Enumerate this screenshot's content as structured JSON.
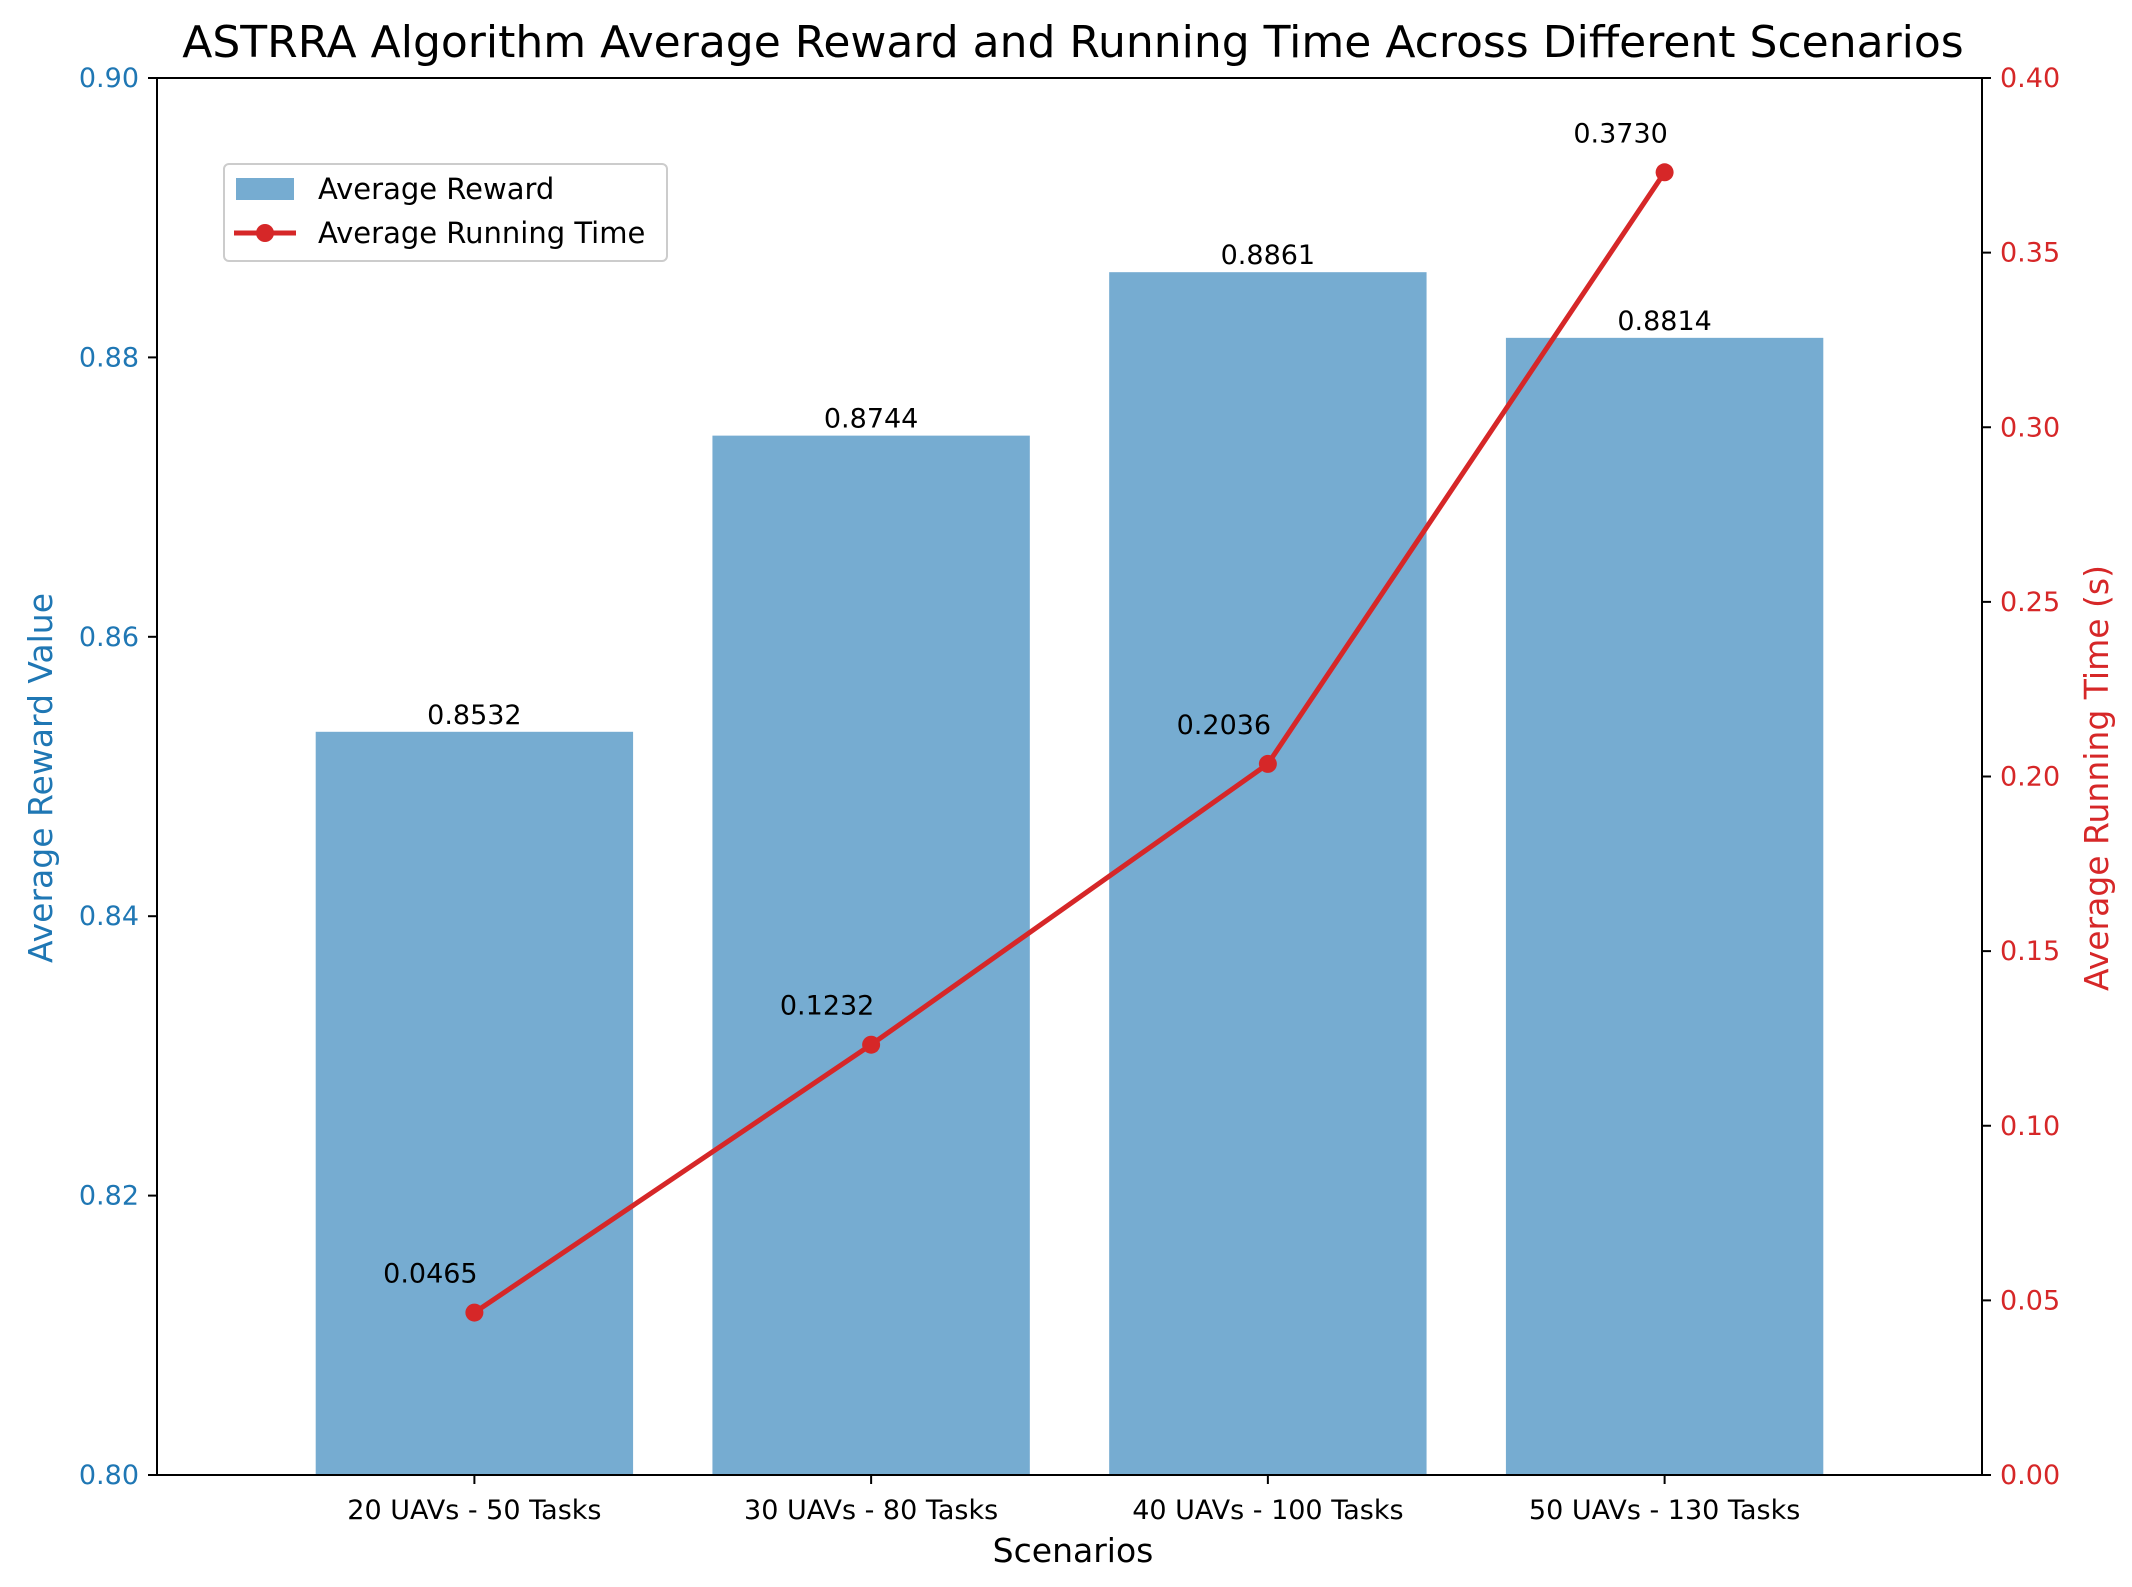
{
  "chart_data": {
    "type": "bar+line",
    "title": "ASTRRA Algorithm Average Reward and Running Time Across Different Scenarios",
    "xlabel": "Scenarios",
    "categories": [
      "20 UAVs - 50 Tasks",
      "30 UAVs - 80 Tasks",
      "40 UAVs - 100 Tasks",
      "50 UAVs - 130 Tasks"
    ],
    "bar_series": {
      "name": "Average Reward",
      "values": [
        0.8532,
        0.8744,
        0.8861,
        0.8814
      ],
      "labels": [
        "0.8532",
        "0.8744",
        "0.8861",
        "0.8814"
      ],
      "color": "#76acd1"
    },
    "line_series": {
      "name": "Average Running Time",
      "values": [
        0.0465,
        0.1232,
        0.2036,
        0.373
      ],
      "labels": [
        "0.0465",
        "0.1232",
        "0.2036",
        "0.3730"
      ],
      "color": "#d62728"
    },
    "left_axis": {
      "label": "Average Reward Value",
      "color": "#1f77b4",
      "ylim": [
        0.8,
        0.9
      ],
      "ticks": [
        0.8,
        0.82,
        0.84,
        0.86,
        0.88,
        0.9
      ],
      "tick_labels": [
        "0.80",
        "0.82",
        "0.84",
        "0.86",
        "0.88",
        "0.90"
      ]
    },
    "right_axis": {
      "label": "Average Running Time (s)",
      "color": "#d62728",
      "ylim": [
        0.0,
        0.4
      ],
      "ticks": [
        0.0,
        0.05,
        0.1,
        0.15,
        0.2,
        0.25,
        0.3,
        0.35,
        0.4
      ],
      "tick_labels": [
        "0.00",
        "0.05",
        "0.10",
        "0.15",
        "0.20",
        "0.25",
        "0.30",
        "0.35",
        "0.40"
      ]
    },
    "legend": {
      "position": "top-left",
      "entries": [
        "Average Reward",
        "Average Running Time"
      ]
    },
    "grid": false
  }
}
